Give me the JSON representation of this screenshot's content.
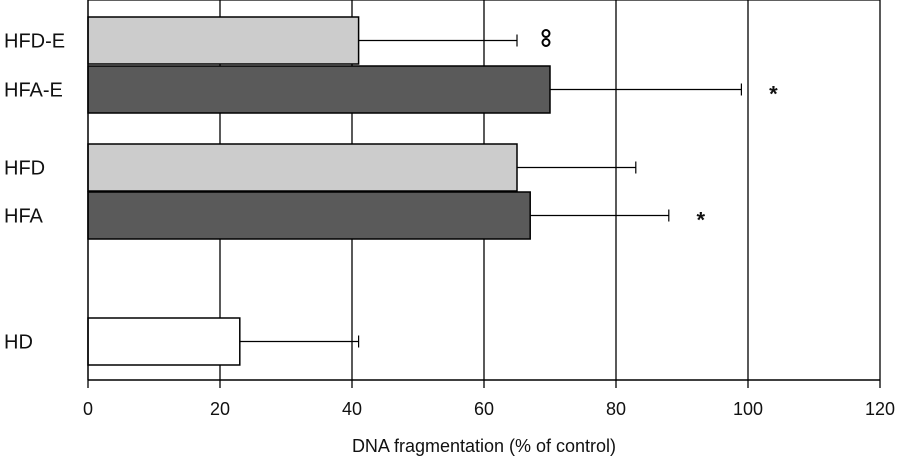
{
  "chart_data": {
    "type": "bar",
    "orientation": "horizontal",
    "title": "",
    "xlabel": "DNA fragmentation (% of control)",
    "ylabel": "",
    "xlim": [
      0,
      120
    ],
    "xticks": [
      0,
      20,
      40,
      60,
      80,
      100,
      120
    ],
    "grid": true,
    "categories": [
      "HFD-E",
      "HFA-E",
      "HFD",
      "HFA",
      "HD"
    ],
    "values": [
      41,
      70,
      65,
      67,
      23
    ],
    "errors": [
      24,
      29,
      18,
      21,
      18
    ],
    "annotations": [
      "°°",
      "*",
      "",
      "*",
      ""
    ],
    "colors": {
      "HFD-E": "#cccccc",
      "HFA-E": "#5a5a5a",
      "HFD": "#cccccc",
      "HFA": "#5a5a5a",
      "HD": "#ffffff"
    }
  }
}
